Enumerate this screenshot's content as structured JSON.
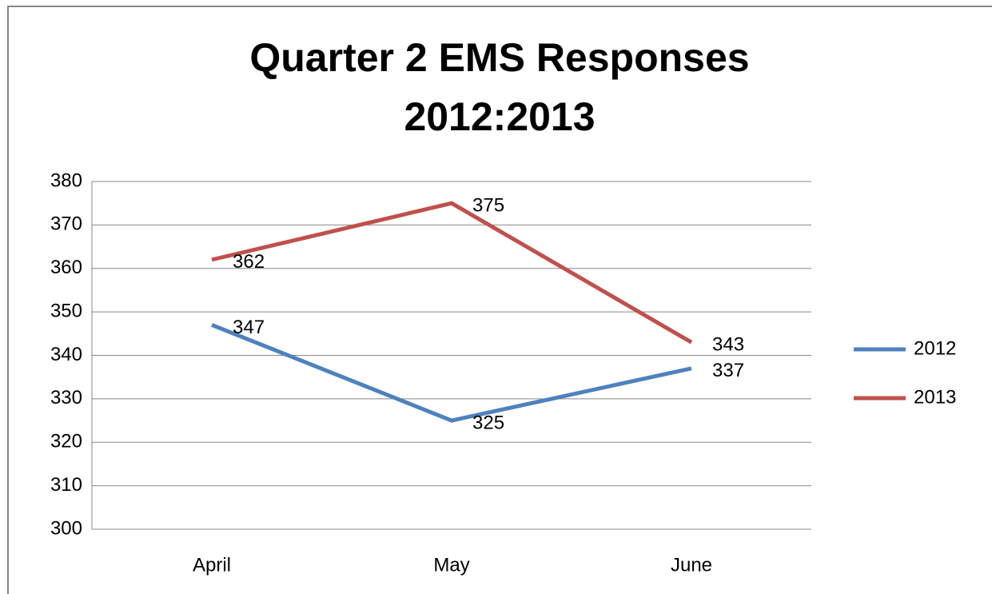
{
  "chart_data": {
    "type": "line",
    "title": [
      "Quarter 2 EMS Responses",
      "2012:2013"
    ],
    "categories": [
      "April",
      "May",
      "June"
    ],
    "series": [
      {
        "name": "2012",
        "color": "#4f81bd",
        "values": [
          347,
          325,
          337
        ]
      },
      {
        "name": "2013",
        "color": "#c0504d",
        "values": [
          362,
          375,
          343
        ]
      }
    ],
    "ylim": [
      300,
      380
    ],
    "yticks": [
      300,
      310,
      320,
      330,
      340,
      350,
      360,
      370,
      380
    ],
    "grid": true,
    "legend": "right",
    "data_labels": true
  }
}
